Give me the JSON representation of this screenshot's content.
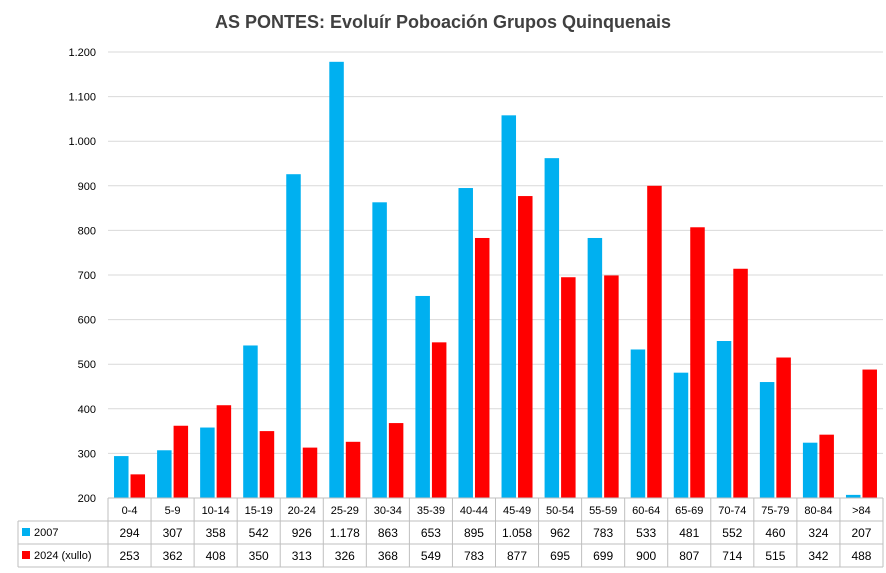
{
  "chart_data": {
    "type": "bar",
    "title": "AS PONTES: Evoluír Poboación Grupos Quinquenais",
    "categories": [
      "0-4",
      "5-9",
      "10-14",
      "15-19",
      "20-24",
      "25-29",
      "30-34",
      "35-39",
      "40-44",
      "45-49",
      "50-54",
      "55-59",
      "60-64",
      "65-69",
      "70-74",
      "75-79",
      "80-84",
      ">84"
    ],
    "series": [
      {
        "name": "2007",
        "color": "#00b0f0",
        "values": [
          294,
          307,
          358,
          542,
          926,
          1178,
          863,
          653,
          895,
          1058,
          962,
          783,
          533,
          481,
          552,
          460,
          324,
          207
        ],
        "labels": [
          "294",
          "307",
          "358",
          "542",
          "926",
          "1.178",
          "863",
          "653",
          "895",
          "1.058",
          "962",
          "783",
          "533",
          "481",
          "552",
          "460",
          "324",
          "207"
        ]
      },
      {
        "name": "2024 (xullo)",
        "color": "#ff0000",
        "values": [
          253,
          362,
          408,
          350,
          313,
          326,
          368,
          549,
          783,
          877,
          695,
          699,
          900,
          807,
          714,
          515,
          342,
          488
        ],
        "labels": [
          "253",
          "362",
          "408",
          "350",
          "313",
          "326",
          "368",
          "549",
          "783",
          "877",
          "695",
          "699",
          "900",
          "807",
          "714",
          "515",
          "342",
          "488"
        ]
      }
    ],
    "ylim": [
      200,
      1200
    ],
    "yticks": [
      200,
      300,
      400,
      500,
      600,
      700,
      800,
      900,
      1000,
      1100,
      1200
    ],
    "ytick_labels": [
      "200",
      "300",
      "400",
      "500",
      "600",
      "700",
      "800",
      "900",
      "1.000",
      "1.100",
      "1.200"
    ],
    "grid": true,
    "legend": "data-table"
  }
}
